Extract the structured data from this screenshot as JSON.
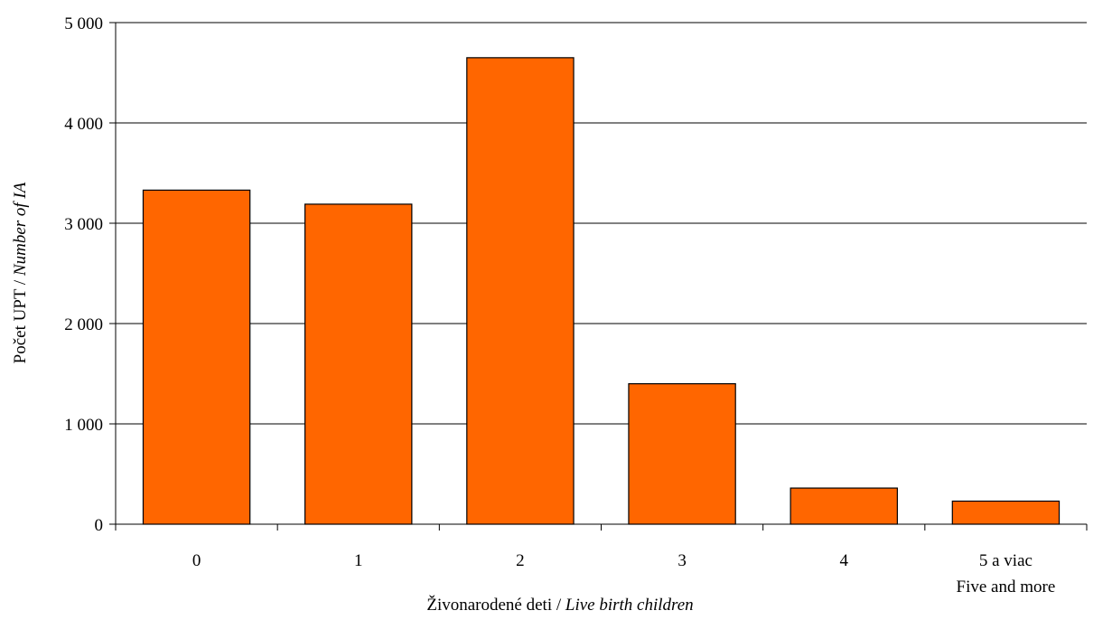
{
  "chart_data": {
    "type": "bar",
    "xlabel": "Živonarodené deti / ",
    "xlabel_italic": "Live birth children",
    "ylabel": "Počet UPT / ",
    "ylabel_italic": "Number of IA",
    "categories": [
      "0",
      "1",
      "2",
      "3",
      "4",
      "5 a viac"
    ],
    "category_sublabels": [
      "",
      "",
      "",
      "",
      "",
      "Five and more"
    ],
    "values": [
      3330,
      3190,
      4650,
      1400,
      360,
      230
    ],
    "ylim": [
      0,
      5000
    ],
    "yticks": [
      0,
      1000,
      2000,
      3000,
      4000,
      5000
    ],
    "ytick_labels": [
      "0",
      "1 000",
      "2 000",
      "3 000",
      "4 000",
      "5 000"
    ],
    "grid": true,
    "bar_color": "#FF6600",
    "bar_edge_color": "#000000"
  }
}
